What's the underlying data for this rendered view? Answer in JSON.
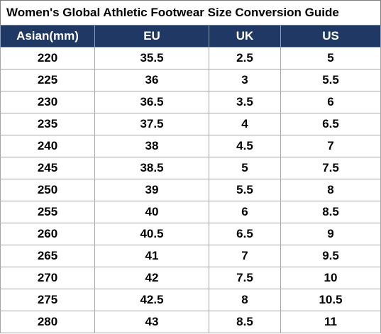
{
  "table": {
    "title": "Women's Global Athletic Footwear Size Conversion Guide",
    "header": [
      "Asian(mm)",
      "EU",
      "UK",
      "US"
    ],
    "rows": [
      [
        "220",
        "35.5",
        "2.5",
        "5"
      ],
      [
        "225",
        "36",
        "3",
        "5.5"
      ],
      [
        "230",
        "36.5",
        "3.5",
        "6"
      ],
      [
        "235",
        "37.5",
        "4",
        "6.5"
      ],
      [
        "240",
        "38",
        "4.5",
        "7"
      ],
      [
        "245",
        "38.5",
        "5",
        "7.5"
      ],
      [
        "250",
        "39",
        "5.5",
        "8"
      ],
      [
        "255",
        "40",
        "6",
        "8.5"
      ],
      [
        "260",
        "40.5",
        "6.5",
        "9"
      ],
      [
        "265",
        "41",
        "7",
        "9.5"
      ],
      [
        "270",
        "42",
        "7.5",
        "10"
      ],
      [
        "275",
        "42.5",
        "8",
        "10.5"
      ],
      [
        "280",
        "43",
        "8.5",
        "11"
      ]
    ]
  }
}
